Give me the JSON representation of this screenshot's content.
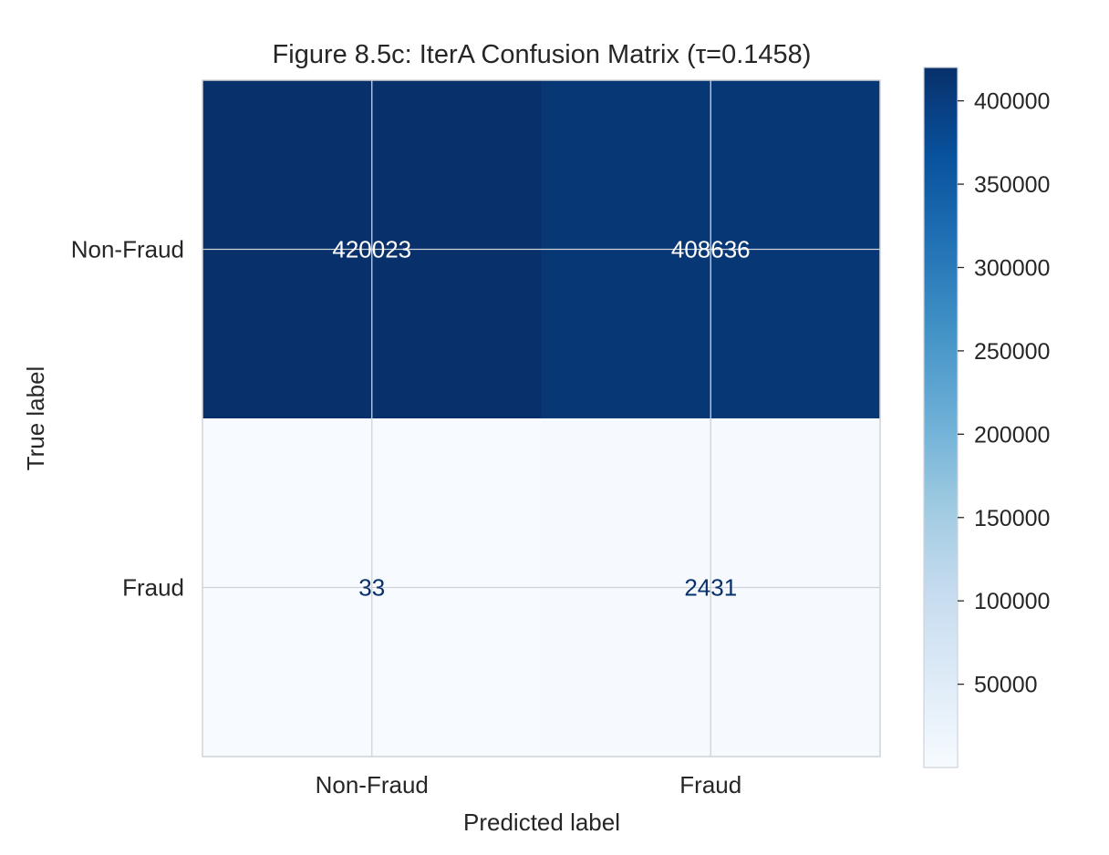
{
  "chart_data": {
    "type": "heatmap",
    "title": "Figure 8.5c: IterA Confusion Matrix (τ=0.1458)",
    "xlabel": "Predicted label",
    "ylabel": "True label",
    "x_categories": [
      "Non-Fraud",
      "Fraud"
    ],
    "y_categories": [
      "Non-Fraud",
      "Fraud"
    ],
    "values": [
      [
        420023,
        408636
      ],
      [
        33,
        2431
      ]
    ],
    "colormap": "Blues",
    "colorbar": {
      "min": 33,
      "max": 420023,
      "ticks": [
        50000,
        100000,
        150000,
        200000,
        250000,
        300000,
        350000,
        400000
      ]
    },
    "grid": true,
    "colors": {
      "low": "#f7fbff",
      "high": "#08306b",
      "text_light": "#ffffff",
      "text_dark": "#08306b",
      "grid": "#cfd3d8"
    }
  }
}
